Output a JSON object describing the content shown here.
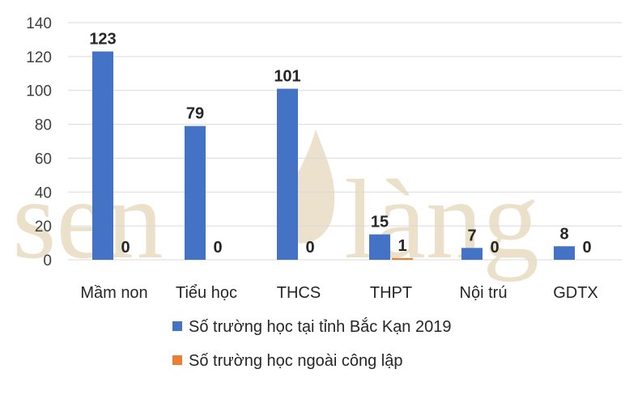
{
  "chart_data": {
    "type": "bar",
    "title": "",
    "xlabel": "",
    "ylabel": "",
    "categories": [
      "Mầm non",
      "Tiểu học",
      "THCS",
      "THPT",
      "Nội trú",
      "GDTX"
    ],
    "series": [
      {
        "name": "Số trường học tại tỉnh Bắc Kạn 2019",
        "values": [
          123,
          79,
          101,
          15,
          7,
          8
        ],
        "color": "#4472C4"
      },
      {
        "name": "Số trường học ngoài công lập",
        "values": [
          0,
          0,
          0,
          1,
          0,
          0
        ],
        "color": "#ED7D31"
      }
    ],
    "ylim": [
      0,
      140
    ],
    "yticks": [
      0,
      20,
      40,
      60,
      80,
      100,
      120,
      140
    ],
    "grid": true,
    "legend_position": "bottom",
    "data_labels": true
  },
  "watermark": {
    "text_left": "sen",
    "text_right": "làng",
    "color": "#e8dcc3"
  }
}
